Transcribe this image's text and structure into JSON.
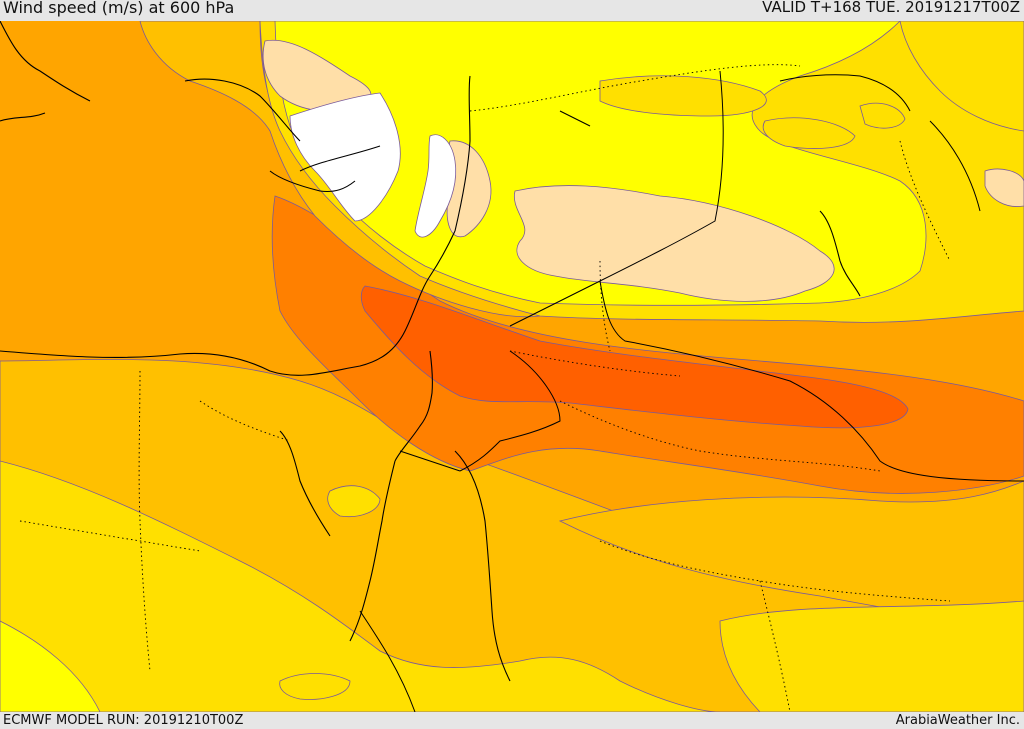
{
  "header": {
    "title": "Wind speed (m/s) at 600 hPa",
    "valid": "VALID T+168 TUE. 20191217T00Z"
  },
  "footer": {
    "model_run": "ECMWF MODEL RUN: 20191210T00Z",
    "credit": "ArabiaWeather Inc."
  },
  "colors": {
    "white": "#ffffff",
    "peach": "#ffdfa8",
    "yellow": "#ffff00",
    "gold": "#ffe000",
    "amber": "#ffc000",
    "orange": "#ffa500",
    "dark_orange": "#ff8000",
    "red_orange": "#ff6000"
  }
}
